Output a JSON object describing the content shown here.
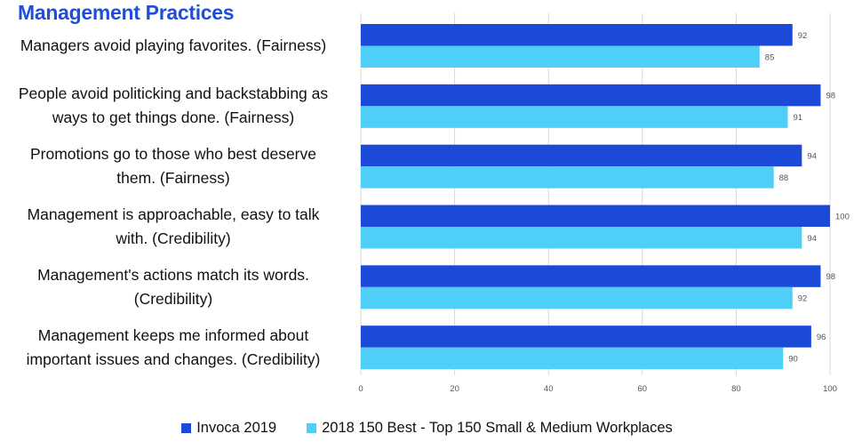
{
  "chart_data": {
    "type": "bar",
    "orientation": "horizontal",
    "title": "Management Practices",
    "categories": [
      [
        "Managers avoid playing favorites. (Fairness)"
      ],
      [
        "People avoid politicking and backstabbing as",
        "ways to get things done. (Fairness)"
      ],
      [
        "Promotions go to those who best deserve",
        "them. (Fairness)"
      ],
      [
        "Management is approachable, easy to talk",
        "with. (Credibility)"
      ],
      [
        "Management's actions match its words.",
        "(Credibility)"
      ],
      [
        "Management keeps me informed about",
        "important issues and changes. (Credibility)"
      ]
    ],
    "series": [
      {
        "name": "Invoca 2019",
        "color": "#1b4ad9",
        "values": [
          92,
          98,
          94,
          100,
          98,
          96
        ]
      },
      {
        "name": "2018 150 Best - Top 150 Small & Medium Workplaces",
        "color": "#4fcff8",
        "values": [
          85,
          91,
          88,
          94,
          92,
          90
        ]
      }
    ],
    "xlim": [
      0,
      100
    ],
    "xticks": [
      0,
      20,
      40,
      60,
      80,
      100
    ],
    "grid": "vertical",
    "legend_position": "bottom"
  }
}
